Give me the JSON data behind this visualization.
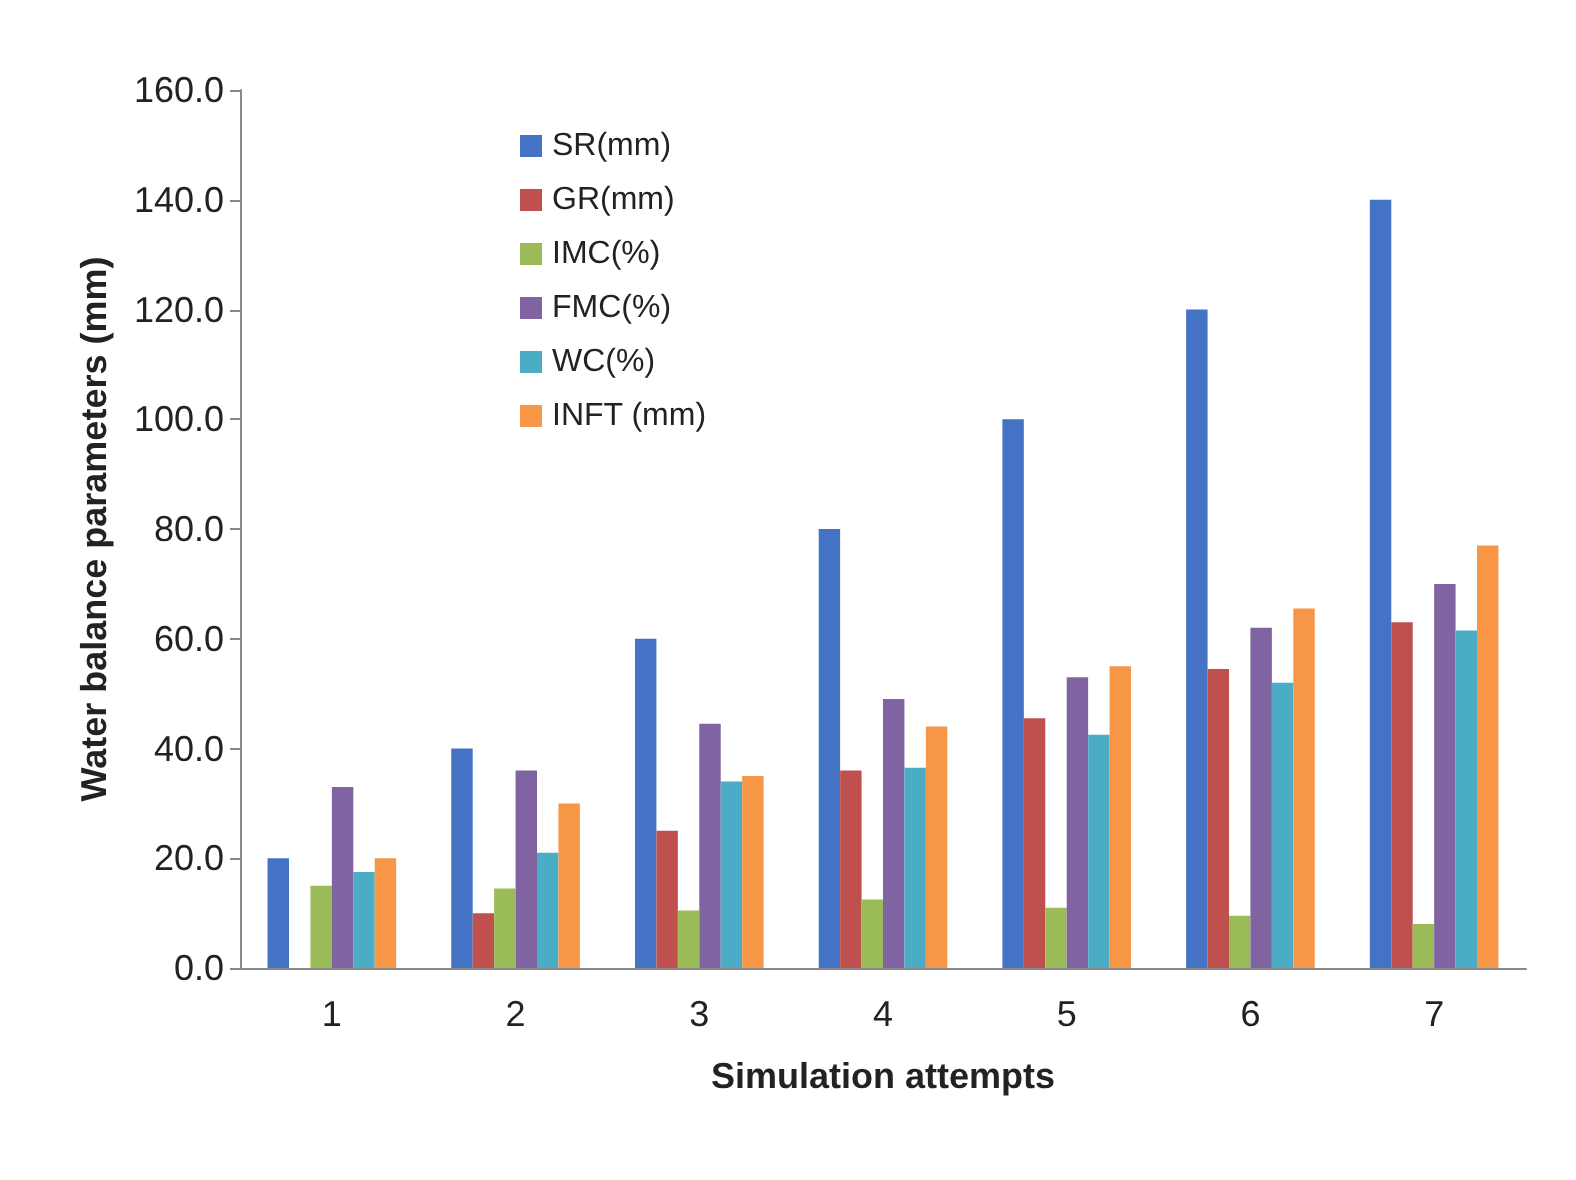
{
  "chart_data": {
    "type": "bar",
    "xlabel": "Simulation attempts",
    "ylabel": "Water balance parameters (mm)",
    "categories": [
      "1",
      "2",
      "3",
      "4",
      "5",
      "6",
      "7"
    ],
    "series": [
      {
        "name": "SR(mm)",
        "color": "#4472c4",
        "values": [
          20,
          40,
          60,
          80,
          100,
          120,
          140
        ]
      },
      {
        "name": "GR(mm)",
        "color": "#c0504d",
        "values": [
          0,
          10,
          25,
          36,
          45.5,
          54.5,
          63
        ]
      },
      {
        "name": "IMC(%)",
        "color": "#9bbb59",
        "values": [
          15,
          14.5,
          10.5,
          12.5,
          11,
          9.5,
          8
        ]
      },
      {
        "name": "FMC(%)",
        "color": "#8064a2",
        "values": [
          33,
          36,
          44.5,
          49,
          53,
          62,
          70
        ]
      },
      {
        "name": "WC(%)",
        "color": "#4bacc6",
        "values": [
          17.5,
          21,
          34,
          36.5,
          42.5,
          52,
          61.5
        ]
      },
      {
        "name": "INFT (mm)",
        "color": "#f79646",
        "values": [
          20,
          30,
          35,
          44,
          55,
          65.5,
          77
        ]
      }
    ],
    "ylim": [
      0,
      160
    ],
    "yticks": [
      {
        "value": 0,
        "label": "0.0"
      },
      {
        "value": 20,
        "label": "20.0"
      },
      {
        "value": 40,
        "label": "40.0"
      },
      {
        "value": 60,
        "label": "60.0"
      },
      {
        "value": 80,
        "label": "80.0"
      },
      {
        "value": 100,
        "label": "100.0"
      },
      {
        "value": 120,
        "label": "120.0"
      },
      {
        "value": 140,
        "label": "140.0"
      },
      {
        "value": 160,
        "label": "160.0"
      }
    ],
    "grid": false,
    "legend": "top left"
  }
}
